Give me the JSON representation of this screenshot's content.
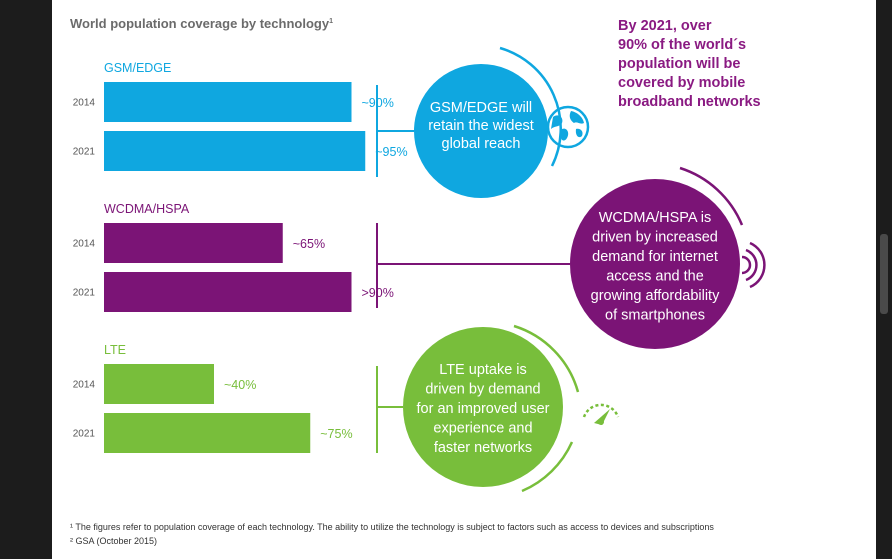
{
  "colors": {
    "gsm": "#0fa7e0",
    "wcdma": "#7b1476",
    "lte": "#78be3b",
    "callout": "#8a1a82"
  },
  "callout": {
    "lines": [
      "By 2021, over",
      "90% of the world´s",
      "population will be",
      "covered by mobile",
      "broadband networks"
    ]
  },
  "bubbles": {
    "gsm": {
      "lines": [
        "GSM/EDGE will",
        "retain the widest",
        "global reach"
      ],
      "icon": "globe-icon"
    },
    "wcdma": {
      "lines": [
        "WCDMA/HSPA is",
        "driven by increased",
        "demand for internet",
        "access and the",
        "growing affordability",
        "of smartphones"
      ],
      "icon": "wifi-signal-icon"
    },
    "lte": {
      "lines": [
        "LTE uptake is",
        "driven by demand",
        "for an improved user",
        "experience and",
        "faster networks"
      ],
      "icon": "speedometer-icon"
    }
  },
  "footnotes": [
    "¹ The figures refer to population coverage of each technology. The ability to utilize the technology is subject to factors such as access to devices and subscriptions",
    "² GSA (October 2015)"
  ],
  "chart_data": {
    "type": "bar",
    "orientation": "horizontal",
    "title": "World population coverage by technology",
    "title_superscript": "1",
    "xlim": [
      0,
      100
    ],
    "groups": [
      {
        "name": "GSM/EDGE",
        "color": "#0fa7e0",
        "bars": [
          {
            "year": "2014",
            "value": 90,
            "label": "~90%"
          },
          {
            "year": "2021",
            "value": 95,
            "label": "~95%"
          }
        ]
      },
      {
        "name": "WCDMA/HSPA",
        "color": "#7b1476",
        "bars": [
          {
            "year": "2014",
            "value": 65,
            "label": "~65%"
          },
          {
            "year": "2021",
            "value": 90,
            "label": ">90%"
          }
        ]
      },
      {
        "name": "LTE",
        "color": "#78be3b",
        "bars": [
          {
            "year": "2014",
            "value": 40,
            "label": "~40%"
          },
          {
            "year": "2021",
            "value": 75,
            "label": "~75%"
          }
        ]
      }
    ]
  }
}
